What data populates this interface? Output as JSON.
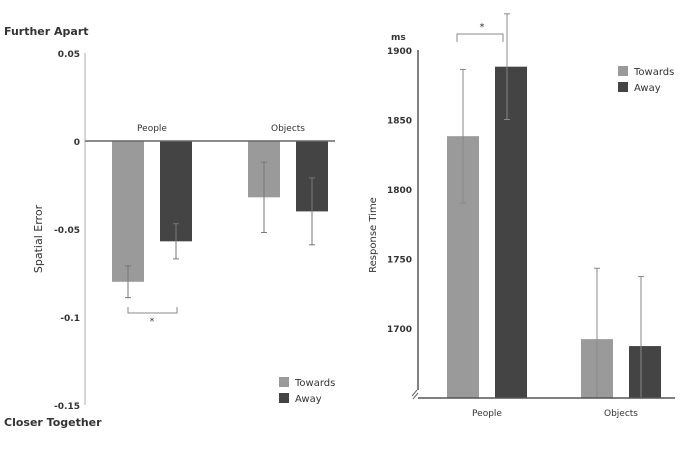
{
  "colors": {
    "towards": "#9a9a9a",
    "away": "#444444",
    "axis": "#888888",
    "text": "#333333"
  },
  "chart_data": [
    {
      "type": "bar",
      "title": "",
      "top_annotation": "Further Apart",
      "bottom_annotation": "Closer Together",
      "xlabel": "",
      "ylabel": "Spatial Error",
      "ylim": [
        -0.15,
        0.05
      ],
      "yticks": [
        "0.05",
        "0",
        "-0.05",
        "-0.1",
        "-0.15"
      ],
      "ytick_values": [
        0.05,
        0,
        -0.05,
        -0.1,
        -0.15
      ],
      "categories": [
        "People",
        "Objects"
      ],
      "series": [
        {
          "name": "Towards",
          "values": [
            -0.08,
            -0.032
          ],
          "errors": [
            0.009,
            0.02
          ]
        },
        {
          "name": "Away",
          "values": [
            -0.057,
            -0.04
          ],
          "errors": [
            0.01,
            0.019
          ]
        }
      ],
      "significance": [
        {
          "category": "People",
          "label": "*"
        }
      ],
      "legend": {
        "position": "bottom-right",
        "entries": [
          "Towards",
          "Away"
        ]
      },
      "grid": false
    },
    {
      "type": "bar",
      "title": "",
      "unit_label": "ms",
      "xlabel": "",
      "ylabel": "Response Time",
      "ylim": [
        1650,
        1900
      ],
      "axis_break": true,
      "yticks": [
        "1900",
        "1850",
        "1800",
        "1750",
        "1700"
      ],
      "ytick_values": [
        1900,
        1850,
        1800,
        1750,
        1700
      ],
      "categories": [
        "People",
        "Objects"
      ],
      "series": [
        {
          "name": "Towards",
          "values": [
            1838,
            1692
          ],
          "errors": [
            48,
            51
          ]
        },
        {
          "name": "Away",
          "values": [
            1888,
            1687
          ],
          "errors": [
            38,
            50
          ]
        }
      ],
      "significance": [
        {
          "category": "People",
          "label": "*"
        }
      ],
      "legend": {
        "position": "top-right",
        "entries": [
          "Towards",
          "Away"
        ]
      },
      "grid": false
    }
  ]
}
